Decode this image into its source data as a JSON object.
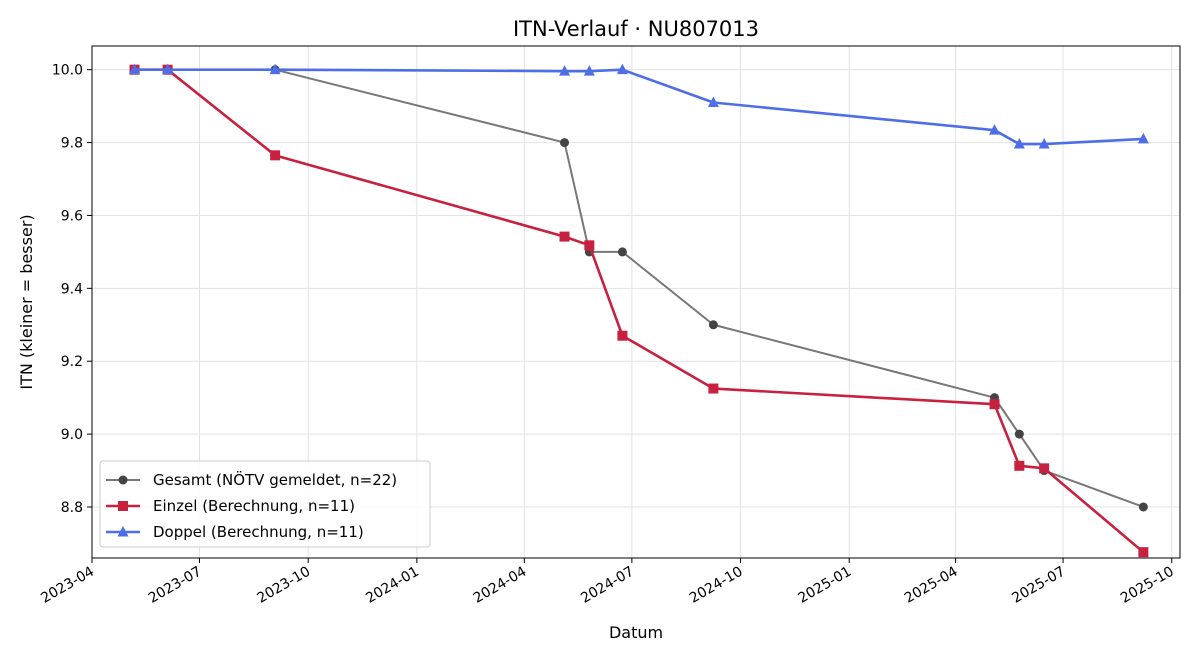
{
  "chart_data": {
    "type": "line",
    "title": "ITN-Verlauf · NU807013",
    "xlabel": "Datum",
    "ylabel": "ITN  (kleiner = besser)",
    "x_axis_type": "date",
    "xlim": [
      "2023-04-01",
      "2025-10-08"
    ],
    "ylim": [
      8.66,
      10.065
    ],
    "x_ticks": [
      "2023-04",
      "2023-07",
      "2023-10",
      "2024-01",
      "2024-04",
      "2024-07",
      "2024-10",
      "2025-01",
      "2025-04",
      "2025-07",
      "2025-10"
    ],
    "y_ticks": [
      "8.8",
      "9.0",
      "9.2",
      "9.4",
      "9.6",
      "9.8",
      "10.0"
    ],
    "grid": true,
    "legend_position": "lower-left",
    "series": [
      {
        "name": "Gesamt (NÖTV gemeldet, n=22)",
        "color": "#777777",
        "marker_color": "#444444",
        "marker": "circle",
        "points": [
          {
            "x": "2023-05-07",
            "y": 10.0
          },
          {
            "x": "2023-06-04",
            "y": 10.0
          },
          {
            "x": "2023-09-03",
            "y": 10.0
          },
          {
            "x": "2024-05-05",
            "y": 9.8
          },
          {
            "x": "2024-05-26",
            "y": 9.5
          },
          {
            "x": "2024-06-23",
            "y": 9.5
          },
          {
            "x": "2024-09-08",
            "y": 9.3
          },
          {
            "x": "2025-05-04",
            "y": 9.1
          },
          {
            "x": "2025-05-25",
            "y": 9.0
          },
          {
            "x": "2025-06-15",
            "y": 8.9
          },
          {
            "x": "2025-09-07",
            "y": 8.8
          }
        ]
      },
      {
        "name": "Einzel (Berechnung, n=11)",
        "color": "#c8203f",
        "marker": "square",
        "points": [
          {
            "x": "2023-05-07",
            "y": 10.0
          },
          {
            "x": "2023-06-04",
            "y": 10.0
          },
          {
            "x": "2023-09-03",
            "y": 9.765
          },
          {
            "x": "2024-05-05",
            "y": 9.542
          },
          {
            "x": "2024-05-26",
            "y": 9.518
          },
          {
            "x": "2024-06-23",
            "y": 9.27
          },
          {
            "x": "2024-09-08",
            "y": 9.125
          },
          {
            "x": "2025-05-04",
            "y": 9.082
          },
          {
            "x": "2025-05-25",
            "y": 8.913
          },
          {
            "x": "2025-06-15",
            "y": 8.906
          },
          {
            "x": "2025-09-07",
            "y": 8.676
          }
        ]
      },
      {
        "name": "Doppel (Berechnung, n=11)",
        "color": "#4e6ee8",
        "marker": "triangle",
        "points": [
          {
            "x": "2023-05-07",
            "y": 10.0
          },
          {
            "x": "2023-06-04",
            "y": 10.0
          },
          {
            "x": "2023-09-03",
            "y": 10.0
          },
          {
            "x": "2024-05-05",
            "y": 9.996
          },
          {
            "x": "2024-05-26",
            "y": 9.996
          },
          {
            "x": "2024-06-23",
            "y": 10.0
          },
          {
            "x": "2024-09-08",
            "y": 9.91
          },
          {
            "x": "2025-05-04",
            "y": 9.834
          },
          {
            "x": "2025-05-25",
            "y": 9.796
          },
          {
            "x": "2025-06-15",
            "y": 9.796
          },
          {
            "x": "2025-09-07",
            "y": 9.81
          }
        ]
      }
    ]
  }
}
